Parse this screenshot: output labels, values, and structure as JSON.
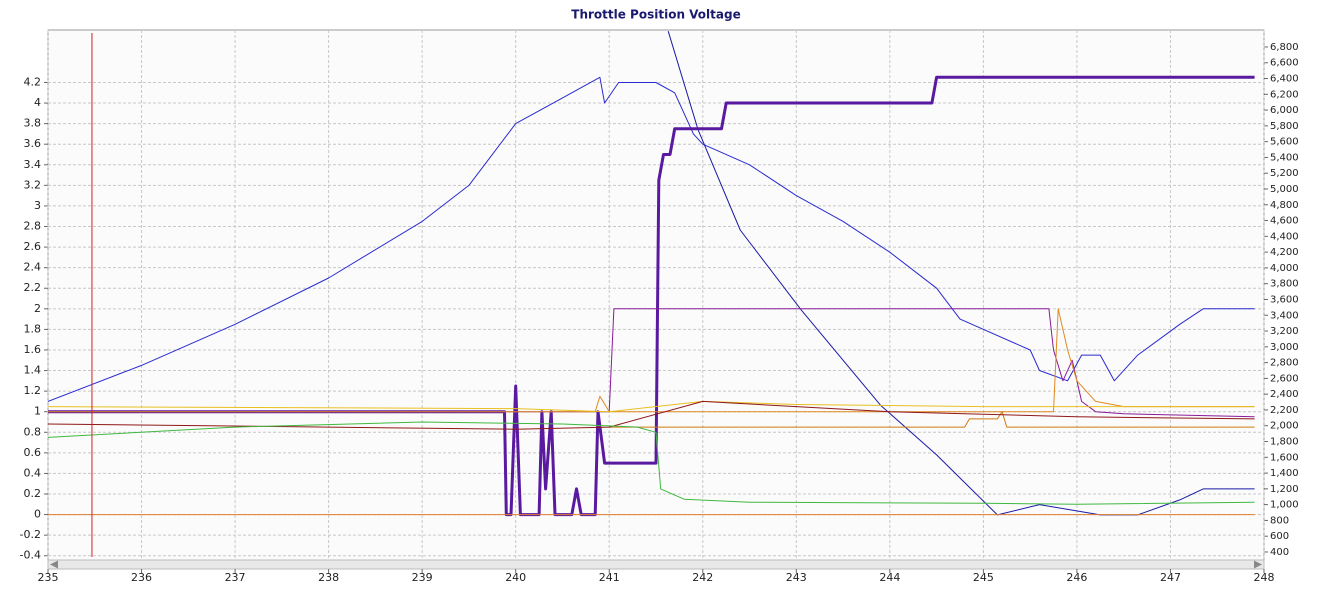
{
  "chart_data": {
    "type": "line",
    "title": "Throttle Position Voltage",
    "xlim": [
      235,
      248
    ],
    "xticks": [
      235,
      236,
      237,
      238,
      239,
      240,
      241,
      242,
      243,
      244,
      245,
      246,
      247,
      248
    ],
    "ylim": [
      -0.49,
      4.71
    ],
    "yticks": [
      -0.4,
      -0.2,
      0,
      0.2,
      0.4,
      0.6,
      0.8,
      1,
      1.2,
      1.4,
      1.6,
      1.8,
      2,
      2.2,
      2.4,
      2.6,
      2.8,
      3,
      3.2,
      3.4,
      3.6,
      3.8,
      4,
      4.2
    ],
    "y2lim": [
      235,
      7015
    ],
    "y2ticks": [
      {
        "value": 400,
        "label": "400"
      },
      {
        "value": 600,
        "label": "600"
      },
      {
        "value": 800,
        "label": "800"
      },
      {
        "value": 1000,
        "label": "1,000"
      },
      {
        "value": 1200,
        "label": "1,200"
      },
      {
        "value": 1400,
        "label": "1,400"
      },
      {
        "value": 1600,
        "label": "1,600"
      },
      {
        "value": 1800,
        "label": "1,800"
      },
      {
        "value": 2000,
        "label": "2,000"
      },
      {
        "value": 2200,
        "label": "2,200"
      },
      {
        "value": 2400,
        "label": "2,400"
      },
      {
        "value": 2600,
        "label": "2,600"
      },
      {
        "value": 2800,
        "label": "2,800"
      },
      {
        "value": 3000,
        "label": "3,000"
      },
      {
        "value": 3200,
        "label": "3,200"
      },
      {
        "value": 3400,
        "label": "3,400"
      },
      {
        "value": 3600,
        "label": "3,600"
      },
      {
        "value": 3800,
        "label": "3,800"
      },
      {
        "value": 4000,
        "label": "4,000"
      },
      {
        "value": 4200,
        "label": "4,200"
      },
      {
        "value": 4400,
        "label": "4,400"
      },
      {
        "value": 4600,
        "label": "4,600"
      },
      {
        "value": 4800,
        "label": "4,800"
      },
      {
        "value": 5000,
        "label": "5,000"
      },
      {
        "value": 5200,
        "label": "5,200"
      },
      {
        "value": 5400,
        "label": "5,400"
      },
      {
        "value": 5600,
        "label": "5,600"
      },
      {
        "value": 5800,
        "label": "5,800"
      },
      {
        "value": 6000,
        "label": "6,000"
      },
      {
        "value": 6200,
        "label": "6,200"
      },
      {
        "value": 6400,
        "label": "6,400"
      },
      {
        "value": 6600,
        "label": "6,600"
      },
      {
        "value": 6800,
        "label": "6,800"
      }
    ],
    "grid": true,
    "cursor_x": 235.47,
    "cursor_color": "#d02020",
    "series": [
      {
        "color": "#2a2ad0",
        "x": [
          235,
          236,
          237,
          238,
          239,
          239.5,
          240,
          240.5,
          240.9,
          240.95,
          241.1,
          241.5,
          241.7,
          241.9,
          242,
          242.5,
          243,
          243.5,
          244,
          244.5,
          244.75,
          245.5,
          245.6,
          245.9,
          246.05,
          246.25,
          246.4,
          246.65,
          247.1,
          247.35,
          247.9
        ],
        "values": [
          1.1,
          1.45,
          1.85,
          2.3,
          2.85,
          3.2,
          3.8,
          4.05,
          4.25,
          4.0,
          4.2,
          4.2,
          4.1,
          3.7,
          3.6,
          3.4,
          3.1,
          2.85,
          2.55,
          2.2,
          1.9,
          1.6,
          1.4,
          1.3,
          1.55,
          1.55,
          1.3,
          1.55,
          1.85,
          2.0,
          2.0
        ]
      },
      {
        "color": "#1a1aa8",
        "axis": "y2",
        "x": [
          241.63,
          241.95,
          242.4,
          243.05,
          243.9,
          244.5,
          245.15,
          245.6,
          246.25,
          246.65,
          247.1,
          247.35,
          247.9
        ],
        "values": [
          7000,
          5750,
          4480,
          3470,
          2260,
          1630,
          870,
          1000,
          870,
          870,
          1060,
          1200,
          1200
        ]
      },
      {
        "color": "#5a1aa0",
        "line_width": 3,
        "x": [
          235,
          239.88,
          239.9,
          239.95,
          240,
          240.05,
          240.25,
          240.28,
          240.32,
          240.38,
          240.42,
          240.6,
          240.65,
          240.7,
          240.85,
          240.88,
          240.95,
          241.5,
          241.53,
          241.58,
          241.65,
          241.7,
          242.2,
          242.25,
          244.45,
          244.5,
          247.9
        ],
        "values": [
          1,
          1,
          0,
          0,
          1.25,
          0,
          0,
          1,
          0.25,
          1,
          0,
          0,
          0.25,
          0,
          0,
          1,
          0.5,
          0.5,
          3.25,
          3.5,
          3.5,
          3.75,
          3.75,
          4,
          4,
          4.25,
          4.25
        ]
      },
      {
        "color": "#8a1a9a",
        "x": [
          235,
          241,
          241.05,
          245.7,
          245.75,
          245.85,
          245.95,
          246.05,
          246.2,
          246.5,
          247.9
        ],
        "values": [
          1,
          1,
          2,
          2,
          1.6,
          1.3,
          1.5,
          1.1,
          1,
          0.98,
          0.95
        ]
      },
      {
        "color": "#e08030",
        "x": [
          235,
          247.9
        ],
        "values": [
          0,
          0
        ]
      },
      {
        "color": "#e08a20",
        "x": [
          235,
          240.85,
          240.9,
          241,
          245.75,
          245.8,
          245.9,
          246,
          246.2,
          246.5,
          247.9
        ],
        "values": [
          1,
          1,
          1.15,
          1,
          1,
          2,
          1.6,
          1.3,
          1.1,
          1.05,
          1.05
        ]
      },
      {
        "color": "#d07a10",
        "x": [
          241,
          244.8,
          244.85,
          245.15,
          245.2,
          245.25,
          247.9
        ],
        "values": [
          0.85,
          0.85,
          0.93,
          0.93,
          1,
          0.85,
          0.85
        ]
      },
      {
        "color": "#e8c020",
        "x": [
          235,
          240,
          241,
          242,
          243,
          245,
          247.9
        ],
        "values": [
          1.05,
          1.03,
          1,
          1.1,
          1.07,
          1.05,
          1.05
        ]
      },
      {
        "color": "#901818",
        "x": [
          235,
          240,
          241,
          242,
          243,
          244,
          246,
          247.9
        ],
        "values": [
          0.88,
          0.83,
          0.85,
          1.1,
          1.05,
          1,
          0.95,
          0.93
        ]
      },
      {
        "color": "#40b840",
        "x": [
          235,
          237,
          239,
          240.5,
          241.3,
          241.5,
          241.55,
          241.8,
          242.5,
          245,
          246,
          247.9
        ],
        "values": [
          0.75,
          0.85,
          0.9,
          0.88,
          0.85,
          0.8,
          0.25,
          0.15,
          0.12,
          0.11,
          0.1,
          0.12
        ]
      }
    ]
  }
}
